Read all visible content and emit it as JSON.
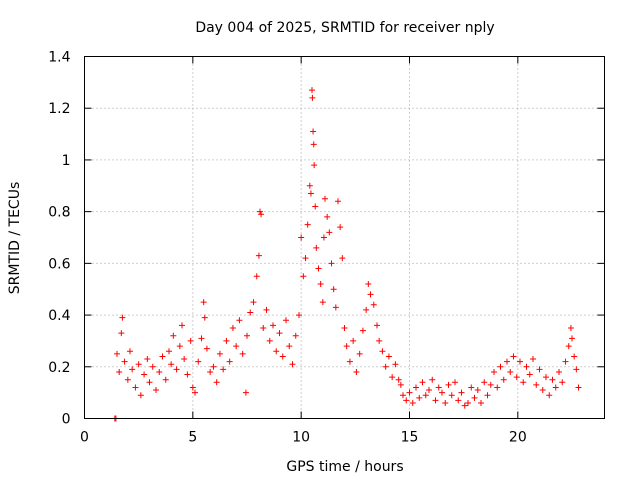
{
  "chart_data": {
    "type": "scatter",
    "title": "Day 004 of 2025, SRMTID for receiver nply",
    "xlabel": "GPS time / hours",
    "ylabel": "SRMTID / TECUs",
    "xlim": [
      0,
      24
    ],
    "ylim": [
      0,
      1.4
    ],
    "xticks": [
      0,
      5,
      10,
      15,
      20
    ],
    "xtick_labels": [
      "0",
      "5",
      "10",
      "15",
      "20"
    ],
    "yticks": [
      0,
      0.2,
      0.4,
      0.6,
      0.8,
      1.0,
      1.2,
      1.4
    ],
    "ytick_labels": [
      "0",
      "0.2",
      "0.4",
      "0.6",
      "0.8",
      "1",
      "1.2",
      "1.4"
    ],
    "grid": true,
    "marker": "+",
    "series": [
      {
        "name": "SRMTID",
        "color": "#ff0000",
        "points": [
          [
            1.4,
            0.0
          ],
          [
            1.45,
            0.0
          ],
          [
            1.5,
            0.25
          ],
          [
            1.6,
            0.18
          ],
          [
            1.7,
            0.33
          ],
          [
            1.75,
            0.39
          ],
          [
            1.85,
            0.22
          ],
          [
            2.0,
            0.15
          ],
          [
            2.1,
            0.26
          ],
          [
            2.2,
            0.19
          ],
          [
            2.35,
            0.12
          ],
          [
            2.5,
            0.21
          ],
          [
            2.6,
            0.09
          ],
          [
            2.75,
            0.17
          ],
          [
            2.9,
            0.23
          ],
          [
            3.0,
            0.14
          ],
          [
            3.15,
            0.2
          ],
          [
            3.3,
            0.11
          ],
          [
            3.45,
            0.18
          ],
          [
            3.6,
            0.24
          ],
          [
            3.75,
            0.15
          ],
          [
            3.9,
            0.26
          ],
          [
            4.0,
            0.21
          ],
          [
            4.1,
            0.32
          ],
          [
            4.25,
            0.19
          ],
          [
            4.4,
            0.28
          ],
          [
            4.5,
            0.36
          ],
          [
            4.6,
            0.23
          ],
          [
            4.75,
            0.17
          ],
          [
            4.9,
            0.3
          ],
          [
            5.0,
            0.12
          ],
          [
            5.1,
            0.1
          ],
          [
            5.25,
            0.22
          ],
          [
            5.4,
            0.31
          ],
          [
            5.5,
            0.45
          ],
          [
            5.55,
            0.39
          ],
          [
            5.65,
            0.27
          ],
          [
            5.8,
            0.18
          ],
          [
            5.95,
            0.2
          ],
          [
            6.1,
            0.14
          ],
          [
            6.25,
            0.25
          ],
          [
            6.4,
            0.19
          ],
          [
            6.55,
            0.3
          ],
          [
            6.7,
            0.22
          ],
          [
            6.85,
            0.35
          ],
          [
            7.0,
            0.28
          ],
          [
            7.15,
            0.38
          ],
          [
            7.3,
            0.25
          ],
          [
            7.45,
            0.1
          ],
          [
            7.5,
            0.32
          ],
          [
            7.65,
            0.41
          ],
          [
            7.8,
            0.45
          ],
          [
            7.95,
            0.55
          ],
          [
            8.05,
            0.63
          ],
          [
            8.1,
            0.8
          ],
          [
            8.15,
            0.79
          ],
          [
            8.25,
            0.35
          ],
          [
            8.4,
            0.42
          ],
          [
            8.55,
            0.3
          ],
          [
            8.7,
            0.36
          ],
          [
            8.85,
            0.26
          ],
          [
            9.0,
            0.33
          ],
          [
            9.15,
            0.24
          ],
          [
            9.3,
            0.38
          ],
          [
            9.45,
            0.28
          ],
          [
            9.6,
            0.21
          ],
          [
            9.75,
            0.32
          ],
          [
            9.9,
            0.4
          ],
          [
            10.0,
            0.7
          ],
          [
            10.1,
            0.55
          ],
          [
            10.2,
            0.62
          ],
          [
            10.3,
            0.75
          ],
          [
            10.4,
            0.9
          ],
          [
            10.45,
            0.87
          ],
          [
            10.5,
            1.27
          ],
          [
            10.52,
            1.24
          ],
          [
            10.55,
            1.11
          ],
          [
            10.58,
            1.06
          ],
          [
            10.6,
            0.98
          ],
          [
            10.65,
            0.82
          ],
          [
            10.7,
            0.66
          ],
          [
            10.8,
            0.58
          ],
          [
            10.9,
            0.52
          ],
          [
            11.0,
            0.45
          ],
          [
            11.05,
            0.7
          ],
          [
            11.1,
            0.85
          ],
          [
            11.2,
            0.78
          ],
          [
            11.3,
            0.72
          ],
          [
            11.4,
            0.6
          ],
          [
            11.5,
            0.5
          ],
          [
            11.6,
            0.43
          ],
          [
            11.7,
            0.84
          ],
          [
            11.8,
            0.74
          ],
          [
            11.9,
            0.62
          ],
          [
            12.0,
            0.35
          ],
          [
            12.1,
            0.28
          ],
          [
            12.25,
            0.22
          ],
          [
            12.4,
            0.3
          ],
          [
            12.55,
            0.18
          ],
          [
            12.7,
            0.25
          ],
          [
            12.85,
            0.34
          ],
          [
            13.0,
            0.42
          ],
          [
            13.1,
            0.52
          ],
          [
            13.2,
            0.48
          ],
          [
            13.35,
            0.44
          ],
          [
            13.5,
            0.36
          ],
          [
            13.6,
            0.3
          ],
          [
            13.75,
            0.26
          ],
          [
            13.9,
            0.2
          ],
          [
            14.05,
            0.24
          ],
          [
            14.2,
            0.16
          ],
          [
            14.35,
            0.21
          ],
          [
            14.5,
            0.15
          ],
          [
            14.6,
            0.13
          ],
          [
            14.7,
            0.09
          ],
          [
            14.85,
            0.07
          ],
          [
            15.0,
            0.1
          ],
          [
            15.15,
            0.06
          ],
          [
            15.3,
            0.12
          ],
          [
            15.45,
            0.08
          ],
          [
            15.6,
            0.14
          ],
          [
            15.75,
            0.09
          ],
          [
            15.9,
            0.11
          ],
          [
            16.05,
            0.15
          ],
          [
            16.2,
            0.07
          ],
          [
            16.35,
            0.12
          ],
          [
            16.5,
            0.1
          ],
          [
            16.65,
            0.06
          ],
          [
            16.8,
            0.13
          ],
          [
            16.95,
            0.09
          ],
          [
            17.1,
            0.14
          ],
          [
            17.25,
            0.07
          ],
          [
            17.4,
            0.1
          ],
          [
            17.55,
            0.05
          ],
          [
            17.7,
            0.06
          ],
          [
            17.85,
            0.12
          ],
          [
            18.0,
            0.08
          ],
          [
            18.15,
            0.11
          ],
          [
            18.3,
            0.06
          ],
          [
            18.45,
            0.14
          ],
          [
            18.6,
            0.09
          ],
          [
            18.75,
            0.13
          ],
          [
            18.9,
            0.18
          ],
          [
            19.05,
            0.12
          ],
          [
            19.2,
            0.2
          ],
          [
            19.35,
            0.15
          ],
          [
            19.5,
            0.22
          ],
          [
            19.65,
            0.18
          ],
          [
            19.8,
            0.24
          ],
          [
            19.95,
            0.16
          ],
          [
            20.1,
            0.22
          ],
          [
            20.25,
            0.14
          ],
          [
            20.4,
            0.2
          ],
          [
            20.55,
            0.17
          ],
          [
            20.7,
            0.23
          ],
          [
            20.85,
            0.13
          ],
          [
            21.0,
            0.19
          ],
          [
            21.15,
            0.11
          ],
          [
            21.3,
            0.16
          ],
          [
            21.45,
            0.09
          ],
          [
            21.6,
            0.15
          ],
          [
            21.75,
            0.12
          ],
          [
            21.9,
            0.18
          ],
          [
            22.05,
            0.14
          ],
          [
            22.2,
            0.22
          ],
          [
            22.35,
            0.28
          ],
          [
            22.45,
            0.35
          ],
          [
            22.5,
            0.31
          ],
          [
            22.6,
            0.24
          ],
          [
            22.7,
            0.19
          ],
          [
            22.8,
            0.12
          ]
        ]
      }
    ]
  }
}
